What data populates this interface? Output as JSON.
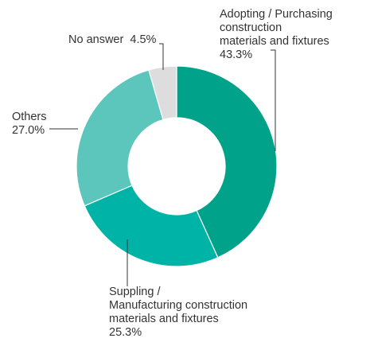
{
  "chart_data": {
    "type": "pie",
    "variant": "donut",
    "slices": [
      {
        "label_lines": [
          "Adopting / Purchasing",
          "construction",
          "materials and fixtures"
        ],
        "value": 43.3,
        "value_text": "43.3%",
        "color": "#00a38a"
      },
      {
        "label_lines": [
          "Suppling /",
          "Manufacturing construction",
          "materials and fixtures"
        ],
        "value": 25.3,
        "value_text": "25.3%",
        "color": "#00b3a7"
      },
      {
        "label_lines": [
          "Others"
        ],
        "value": 27.0,
        "value_text": "27.0%",
        "color": "#5cc6bd"
      },
      {
        "label_lines": [
          "No answer"
        ],
        "value": 4.5,
        "value_text": "4.5%",
        "color": "#dddddd"
      }
    ]
  }
}
